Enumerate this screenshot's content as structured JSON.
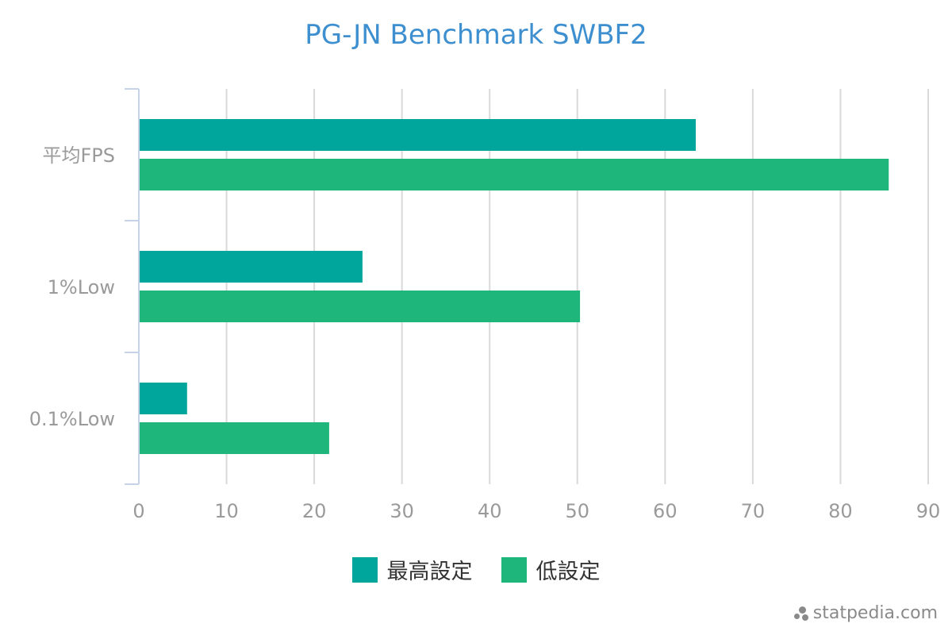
{
  "chart_data": {
    "type": "bar",
    "orientation": "horizontal",
    "title": "PG-JN Benchmark SWBF2",
    "categories": [
      "平均FPS",
      "1%Low",
      "0.1%Low"
    ],
    "series": [
      {
        "name": "最高設定",
        "color": "#00a69c",
        "values": [
          63.5,
          25.5,
          5.5
        ]
      },
      {
        "name": "低設定",
        "color": "#1eb67a",
        "values": [
          85.5,
          50.3,
          21.7
        ]
      }
    ],
    "xlim": [
      0,
      90
    ],
    "xticks": [
      0,
      10,
      20,
      30,
      40,
      50,
      60,
      70,
      80,
      90
    ],
    "grid": true,
    "legend_position": "bottom"
  },
  "watermark": "statpedia.com"
}
